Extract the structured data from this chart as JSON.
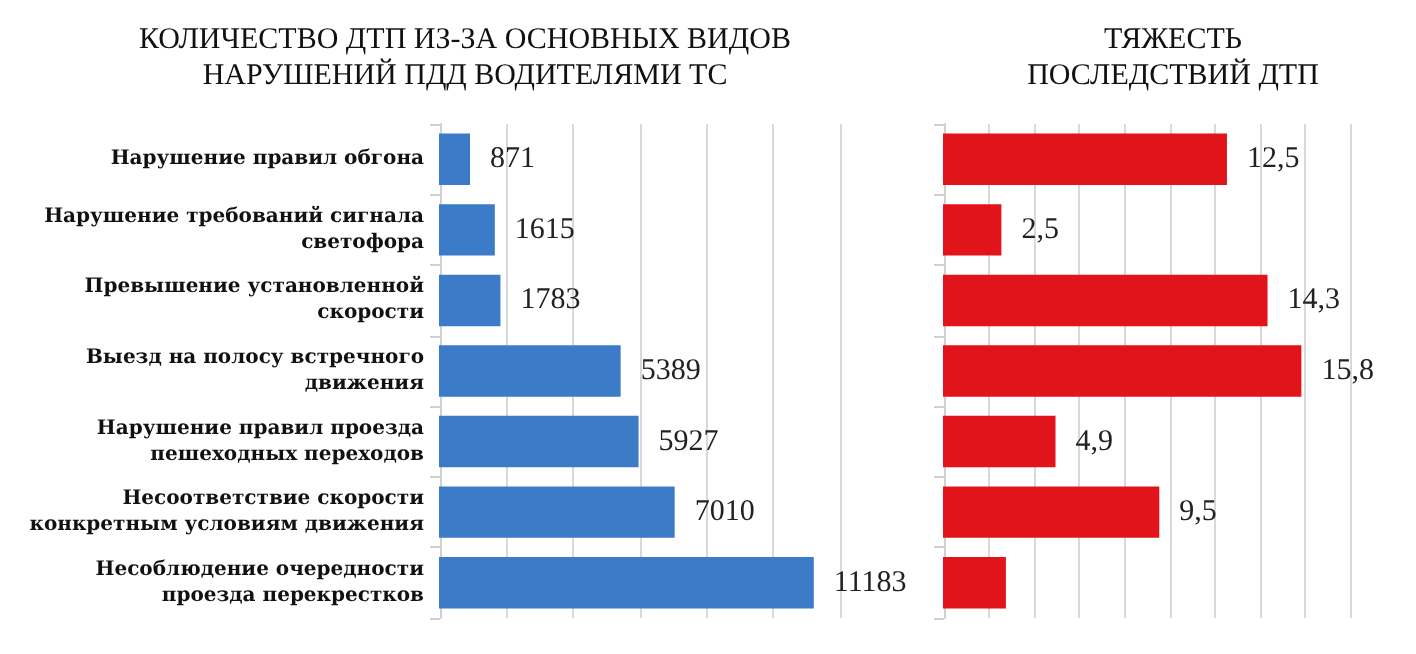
{
  "chart_data": [
    {
      "type": "bar",
      "orientation": "horizontal",
      "title": "КОЛИЧЕСТВО ДТП ИЗ-ЗА ОСНОВНЫХ ВИДОВ\nНАРУШЕНИЙ ПДД ВОДИТЕЛЯМИ ТС",
      "categories": [
        "Нарушение правил обгона",
        "Нарушение требований сигнала\nсветофора",
        "Превышение установленной\nскорости",
        "Выезд на полосу встречного\nдвижения",
        "Нарушение правил проезда\nпешеходных переходов",
        "Несоответствие скорости\nконкретным условиям движения",
        "Несоблюдение очередности\nпроезда перекрестков"
      ],
      "values": [
        871,
        1615,
        1783,
        5389,
        5927,
        7010,
        11183
      ],
      "color": "#3b7bc8",
      "data_labels": true,
      "grid": "x",
      "tick_labels": "y",
      "xlim": [
        0,
        12000
      ],
      "xticks": [
        {
          "value": 0,
          "label": null
        },
        {
          "value": 2000,
          "label": null
        },
        {
          "value": 4000,
          "label": null
        },
        {
          "value": 6000,
          "label": null
        },
        {
          "value": 8000,
          "label": null
        },
        {
          "value": 10000,
          "label": null
        },
        {
          "value": 12000,
          "label": null
        }
      ]
    },
    {
      "type": "bar",
      "orientation": "horizontal",
      "title": "ТЯЖЕСТЬ\nПОСЛЕДСТВИЙ ДТП",
      "categories": [
        null,
        null,
        null,
        null,
        null,
        null,
        null
      ],
      "values": [
        12.5,
        2.5,
        14.3,
        15.8,
        4.9,
        9.5,
        2.7
      ],
      "value_labels": [
        "12,5",
        "2,5",
        "14,3",
        "15,8",
        "4,9",
        "9,5",
        null
      ],
      "color": "#e2141b",
      "grid": "x",
      "tick_labels": false,
      "xlim": [
        0,
        18
      ],
      "xticks": [
        {
          "value": 0,
          "label": null
        },
        {
          "value": 2,
          "label": null
        },
        {
          "value": 4,
          "label": null
        },
        {
          "value": 6,
          "label": null
        },
        {
          "value": 8,
          "label": null
        },
        {
          "value": 10,
          "label": null
        },
        {
          "value": 12,
          "label": null
        },
        {
          "value": 14,
          "label": null
        },
        {
          "value": 16,
          "label": null
        },
        {
          "value": 18,
          "label": null
        }
      ]
    }
  ]
}
